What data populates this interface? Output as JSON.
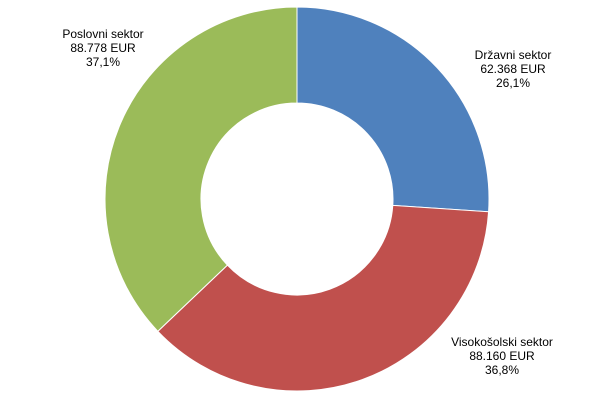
{
  "chart_data": {
    "type": "pie",
    "variant": "donut",
    "title": "",
    "slices": [
      {
        "name": "Državni sektor",
        "value": 62368,
        "value_label": "62.368 EUR",
        "percent_label": "26,1%",
        "color": "#4F81BD"
      },
      {
        "name": "Visokošolski sektor",
        "value": 88160,
        "value_label": "88.160 EUR",
        "percent_label": "36,8%",
        "color": "#C0504D"
      },
      {
        "name": "Poslovni sektor",
        "value": 88778,
        "value_label": "88.778 EUR",
        "percent_label": "37,1%",
        "color": "#9BBB59"
      }
    ],
    "legend": "none"
  }
}
